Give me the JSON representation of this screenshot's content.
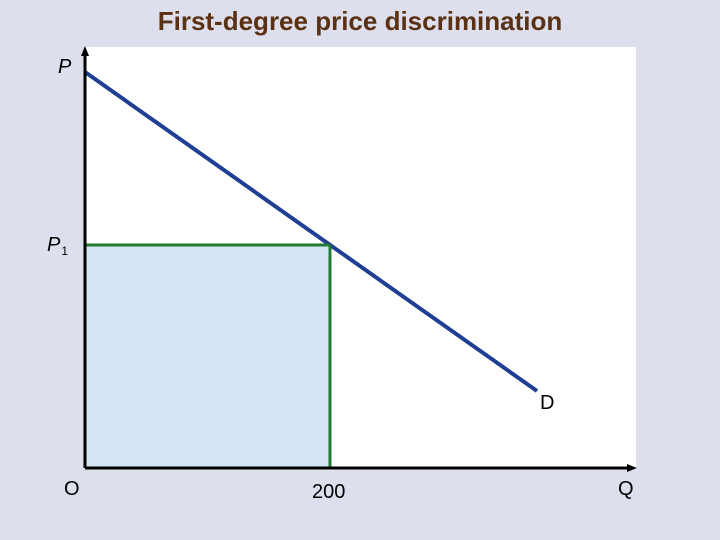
{
  "slide": {
    "title": "First-degree price discrimination"
  },
  "colors": {
    "background": "#dedfec",
    "plot_background": "#ffffff",
    "title": "#5a3113",
    "demand_line": "#1f3f94",
    "price_quantity_lines": "#237a33",
    "surplus_fill": "#d6e5f5",
    "axes": "#000000"
  },
  "axes": {
    "y_label": "P",
    "x_label": "Q",
    "origin_label": "O"
  },
  "price_level": {
    "symbol": "P",
    "subscript": "1"
  },
  "quantity_tick": "200",
  "demand_curve_label": "D"
}
